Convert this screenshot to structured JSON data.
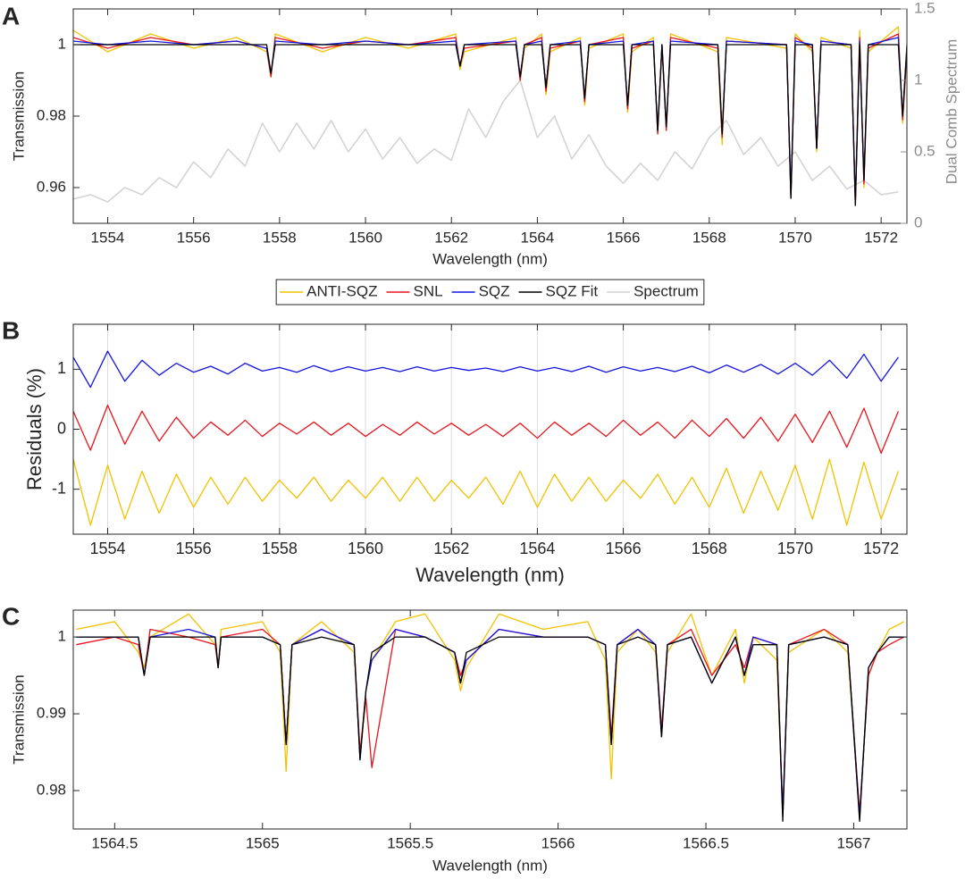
{
  "chart_data": [
    {
      "type": "line",
      "label": "A",
      "xlabel": "Wavelength (nm)",
      "ylabel": "Transmission",
      "y2label": "Dual Comb Spectrum",
      "xlim": [
        1553.2,
        1572.6
      ],
      "xticks": [
        1554,
        1556,
        1558,
        1560,
        1562,
        1564,
        1566,
        1568,
        1570,
        1572
      ],
      "ylim": [
        0.95,
        1.01
      ],
      "yticks": [
        0.96,
        0.98,
        1
      ],
      "y2lim": [
        0,
        1.5
      ],
      "y2ticks": [
        0,
        0.5,
        1,
        1.5
      ],
      "legend": "below",
      "x": [
        1553.2,
        1554,
        1555,
        1556,
        1557,
        1557.7,
        1557.8,
        1557.9,
        1559,
        1560,
        1561,
        1562.1,
        1562.2,
        1562.3,
        1563.5,
        1563.6,
        1563.7,
        1564.1,
        1564.2,
        1564.3,
        1565,
        1565.1,
        1565.2,
        1566,
        1566.1,
        1566.2,
        1566.7,
        1566.8,
        1566.9,
        1567.0,
        1567.1,
        1568.2,
        1568.3,
        1568.4,
        1569.8,
        1569.9,
        1570.0,
        1570.4,
        1570.5,
        1570.6,
        1571.3,
        1571.4,
        1571.5,
        1571.6,
        1571.7,
        1572.4,
        1572.5,
        1572.6
      ],
      "series": [
        {
          "name": "ANTI-SQZ",
          "color": "#f2c200",
          "values": [
            1.004,
            0.998,
            1.003,
            0.999,
            1.002,
            0.998,
            0.991,
            1.003,
            0.998,
            1.002,
            0.999,
            1.003,
            0.993,
            0.998,
            1.002,
            0.99,
            0.999,
            1.003,
            0.986,
            0.998,
            1.002,
            0.983,
            0.999,
            1.003,
            0.981,
            0.998,
            1.002,
            0.975,
            0.999,
            0.976,
            1.003,
            0.998,
            0.972,
            1.002,
            0.999,
            0.958,
            1.003,
            0.998,
            0.97,
            1.002,
            0.999,
            0.956,
            1.004,
            0.96,
            0.998,
            1.005,
            0.978,
            0.997
          ]
        },
        {
          "name": "SNL",
          "color": "#e8141c",
          "values": [
            1.002,
            0.999,
            1.002,
            1.0,
            1.001,
            0.999,
            0.991,
            1.002,
            0.999,
            1.001,
            1.0,
            1.002,
            0.994,
            0.999,
            1.001,
            0.99,
            1.0,
            1.002,
            0.987,
            0.999,
            1.001,
            0.984,
            1.0,
            1.002,
            0.982,
            0.999,
            1.001,
            0.975,
            1.0,
            0.976,
            1.002,
            0.999,
            0.974,
            1.001,
            1.0,
            0.957,
            1.002,
            0.999,
            0.971,
            1.001,
            1.0,
            0.955,
            1.002,
            0.961,
            0.999,
            1.003,
            0.979,
            0.998
          ]
        },
        {
          "name": "SQZ",
          "color": "#1414e0",
          "values": [
            1.001,
            1.0,
            1.001,
            1.0,
            1.001,
            0.999,
            0.992,
            1.001,
            1.0,
            1.001,
            1.0,
            1.001,
            0.994,
            1.0,
            1.001,
            0.991,
            1.0,
            1.001,
            0.988,
            1.0,
            1.001,
            0.985,
            1.0,
            1.001,
            0.983,
            1.0,
            1.001,
            0.976,
            1.0,
            0.977,
            1.001,
            1.0,
            0.975,
            1.001,
            1.0,
            0.958,
            1.001,
            1.0,
            0.971,
            1.001,
            1.0,
            0.956,
            1.001,
            0.962,
            1.0,
            1.002,
            0.98,
            0.999
          ]
        },
        {
          "name": "SQZ Fit",
          "color": "#000000",
          "values": [
            1.0,
            1.0,
            1.0,
            1.0,
            1.0,
            1.0,
            0.992,
            1.0,
            1.0,
            1.0,
            1.0,
            1.0,
            0.994,
            1.0,
            1.0,
            0.991,
            1.0,
            1.0,
            0.988,
            1.0,
            1.0,
            0.985,
            1.0,
            1.0,
            0.983,
            1.0,
            1.0,
            0.976,
            1.0,
            0.977,
            1.0,
            1.0,
            0.975,
            1.0,
            1.0,
            0.957,
            1.0,
            1.0,
            0.971,
            1.0,
            1.0,
            0.955,
            1.0,
            0.962,
            1.0,
            1.0,
            0.98,
            1.0
          ]
        },
        {
          "name": "Spectrum",
          "color": "#d4d4d4",
          "axis": "y2",
          "x": [
            1553.2,
            1553.6,
            1554.0,
            1554.4,
            1554.8,
            1555.2,
            1555.6,
            1556.0,
            1556.4,
            1556.8,
            1557.2,
            1557.6,
            1558.0,
            1558.4,
            1558.8,
            1559.2,
            1559.6,
            1560.0,
            1560.4,
            1560.8,
            1561.2,
            1561.6,
            1562.0,
            1562.4,
            1562.8,
            1563.2,
            1563.6,
            1564.0,
            1564.4,
            1564.8,
            1565.2,
            1565.6,
            1566.0,
            1566.4,
            1566.8,
            1567.2,
            1567.6,
            1568.0,
            1568.4,
            1568.8,
            1569.2,
            1569.6,
            1570.0,
            1570.4,
            1570.8,
            1571.2,
            1571.6,
            1572.0,
            1572.4
          ],
          "values": [
            0.17,
            0.2,
            0.15,
            0.25,
            0.2,
            0.32,
            0.25,
            0.43,
            0.32,
            0.52,
            0.4,
            0.7,
            0.5,
            0.7,
            0.52,
            0.72,
            0.5,
            0.66,
            0.45,
            0.6,
            0.42,
            0.52,
            0.44,
            0.8,
            0.6,
            0.85,
            1.0,
            0.6,
            0.75,
            0.45,
            0.62,
            0.4,
            0.28,
            0.42,
            0.3,
            0.5,
            0.38,
            0.6,
            0.72,
            0.48,
            0.6,
            0.4,
            0.5,
            0.3,
            0.4,
            0.24,
            0.3,
            0.2,
            0.22
          ]
        }
      ]
    },
    {
      "type": "line",
      "label": "B",
      "xlabel": "Wavelength (nm)",
      "ylabel": "Residuals (%)",
      "grid": true,
      "xlim": [
        1553.2,
        1572.6
      ],
      "xticks": [
        1554,
        1556,
        1558,
        1560,
        1562,
        1564,
        1566,
        1568,
        1570,
        1572
      ],
      "ylim": [
        -1.75,
        1.75
      ],
      "yticks": [
        -1,
        0,
        1
      ],
      "x": [
        1553.2,
        1553.6,
        1554.0,
        1554.4,
        1554.8,
        1555.2,
        1555.6,
        1556.0,
        1556.4,
        1556.8,
        1557.2,
        1557.6,
        1558.0,
        1558.4,
        1558.8,
        1559.2,
        1559.6,
        1560.0,
        1560.4,
        1560.8,
        1561.2,
        1561.6,
        1562.0,
        1562.4,
        1562.8,
        1563.2,
        1563.6,
        1564.0,
        1564.4,
        1564.8,
        1565.2,
        1565.6,
        1566.0,
        1566.4,
        1566.8,
        1567.2,
        1567.6,
        1568.0,
        1568.4,
        1568.8,
        1569.2,
        1569.6,
        1570.0,
        1570.4,
        1570.8,
        1571.2,
        1571.6,
        1572.0,
        1572.4
      ],
      "series": [
        {
          "color": "#f2c200",
          "values": [
            -0.5,
            -1.6,
            -0.6,
            -1.5,
            -0.7,
            -1.4,
            -0.75,
            -1.3,
            -0.8,
            -1.25,
            -0.8,
            -1.2,
            -0.85,
            -1.15,
            -0.8,
            -1.2,
            -0.85,
            -1.15,
            -0.8,
            -1.2,
            -0.8,
            -1.2,
            -0.85,
            -1.15,
            -0.8,
            -1.25,
            -0.7,
            -1.3,
            -0.75,
            -1.2,
            -0.8,
            -1.2,
            -0.85,
            -1.15,
            -0.75,
            -1.25,
            -0.8,
            -1.3,
            -0.65,
            -1.4,
            -0.7,
            -1.35,
            -0.6,
            -1.5,
            -0.5,
            -1.6,
            -0.55,
            -1.5,
            -0.7
          ]
        },
        {
          "color": "#e8141c",
          "values": [
            0.3,
            -0.35,
            0.4,
            -0.25,
            0.3,
            -0.2,
            0.2,
            -0.15,
            0.12,
            -0.1,
            0.15,
            -0.12,
            0.1,
            -0.08,
            0.12,
            -0.1,
            0.1,
            -0.12,
            0.08,
            -0.1,
            0.12,
            -0.08,
            0.1,
            -0.1,
            0.08,
            -0.12,
            0.1,
            -0.15,
            0.12,
            -0.1,
            0.1,
            -0.12,
            0.15,
            -0.1,
            0.12,
            -0.15,
            0.15,
            -0.12,
            0.18,
            -0.15,
            0.2,
            -0.2,
            0.25,
            -0.22,
            0.3,
            -0.3,
            0.35,
            -0.4,
            0.3
          ]
        },
        {
          "color": "#1414e0",
          "values": [
            1.2,
            0.7,
            1.3,
            0.8,
            1.15,
            0.9,
            1.1,
            0.95,
            1.05,
            0.92,
            1.1,
            0.97,
            1.03,
            0.95,
            1.06,
            0.96,
            1.04,
            0.97,
            1.03,
            0.96,
            1.04,
            0.97,
            1.03,
            0.98,
            1.02,
            0.96,
            1.04,
            0.97,
            1.03,
            0.96,
            1.05,
            0.95,
            1.04,
            0.97,
            1.03,
            0.96,
            1.05,
            0.94,
            1.07,
            0.95,
            1.08,
            0.92,
            1.1,
            0.9,
            1.15,
            0.85,
            1.25,
            0.8,
            1.2
          ]
        }
      ]
    },
    {
      "type": "line",
      "label": "C",
      "xlabel": "Wavelength (nm)",
      "ylabel": "Transmission",
      "xlim": [
        1564.36,
        1567.18
      ],
      "xticks": [
        1564.5,
        1565,
        1565.5,
        1566,
        1566.5,
        1567
      ],
      "ylim": [
        0.975,
        1.0035
      ],
      "yticks": [
        0.98,
        0.99,
        1
      ],
      "x": [
        1564.37,
        1564.5,
        1564.58,
        1564.6,
        1564.62,
        1564.75,
        1564.84,
        1564.85,
        1564.86,
        1565.0,
        1565.06,
        1565.08,
        1565.1,
        1565.2,
        1565.31,
        1565.33,
        1565.35,
        1565.37,
        1565.45,
        1565.55,
        1565.65,
        1565.67,
        1565.69,
        1565.8,
        1565.95,
        1566.1,
        1566.16,
        1566.18,
        1566.2,
        1566.27,
        1566.33,
        1566.35,
        1566.37,
        1566.45,
        1566.52,
        1566.6,
        1566.63,
        1566.66,
        1566.74,
        1566.76,
        1566.78,
        1566.9,
        1566.98,
        1567.02,
        1567.05,
        1567.08,
        1567.12,
        1567.17
      ],
      "series": [
        {
          "color": "#f2c200",
          "values": [
            1.001,
            1.002,
            0.998,
            0.996,
            1.0,
            1.003,
            0.999,
            0.996,
            1.001,
            1.002,
            0.998,
            0.9825,
            0.999,
            1.002,
            0.998,
            0.985,
            0.993,
            0.997,
            1.002,
            1.003,
            0.997,
            0.993,
            0.996,
            1.003,
            1.001,
            1.002,
            0.997,
            0.9815,
            0.998,
            1.001,
            0.998,
            0.988,
            0.998,
            1.003,
            0.995,
            1.001,
            0.994,
            1.0,
            0.997,
            0.977,
            0.998,
            1.001,
            0.998,
            0.977,
            0.995,
            0.998,
            1.001,
            1.002
          ]
        },
        {
          "color": "#e8141c",
          "values": [
            0.999,
            1.0,
            0.999,
            0.995,
            1.001,
            1.0,
            0.999,
            0.996,
            1.0,
            1.001,
            0.999,
            0.986,
            0.999,
            1.001,
            0.999,
            0.985,
            0.992,
            0.983,
            1.001,
            1.0,
            0.998,
            0.995,
            0.997,
            1.001,
            1.0,
            1.0,
            0.999,
            0.987,
            0.999,
            1.001,
            0.999,
            0.988,
            0.999,
            1.001,
            0.995,
            0.999,
            0.996,
            1.0,
            0.999,
            0.977,
            0.999,
            1.001,
            0.999,
            0.977,
            0.995,
            0.998,
            0.999,
            1.0
          ]
        },
        {
          "color": "#1414e0",
          "values": [
            1.0,
            1.0,
            1.0,
            0.995,
            1.0,
            1.001,
            1.0,
            0.996,
            1.0,
            1.0,
            0.999,
            0.986,
            0.999,
            1.001,
            0.999,
            0.984,
            0.993,
            0.997,
            1.001,
            1.0,
            0.998,
            0.994,
            0.997,
            1.001,
            1.0,
            1.0,
            0.999,
            0.986,
            0.999,
            1.001,
            0.999,
            0.987,
            0.999,
            1.0,
            0.994,
            1.0,
            0.995,
            1.0,
            0.999,
            0.977,
            0.999,
            1.0,
            0.999,
            0.9765,
            0.996,
            0.998,
            1.0,
            1.0
          ]
        },
        {
          "color": "#000000",
          "values": [
            1.0,
            1.0,
            1.0,
            0.995,
            1.0,
            1.0,
            1.0,
            0.996,
            1.0,
            1.0,
            0.999,
            0.986,
            0.999,
            1.0,
            0.999,
            0.984,
            0.993,
            0.998,
            1.0,
            1.0,
            0.998,
            0.994,
            0.998,
            1.0,
            1.0,
            1.0,
            0.999,
            0.986,
            0.999,
            1.0,
            0.999,
            0.987,
            0.999,
            1.0,
            0.994,
            1.0,
            0.995,
            0.999,
            0.999,
            0.976,
            0.999,
            1.0,
            0.999,
            0.976,
            0.996,
            0.998,
            1.0,
            1.0
          ]
        }
      ]
    }
  ]
}
